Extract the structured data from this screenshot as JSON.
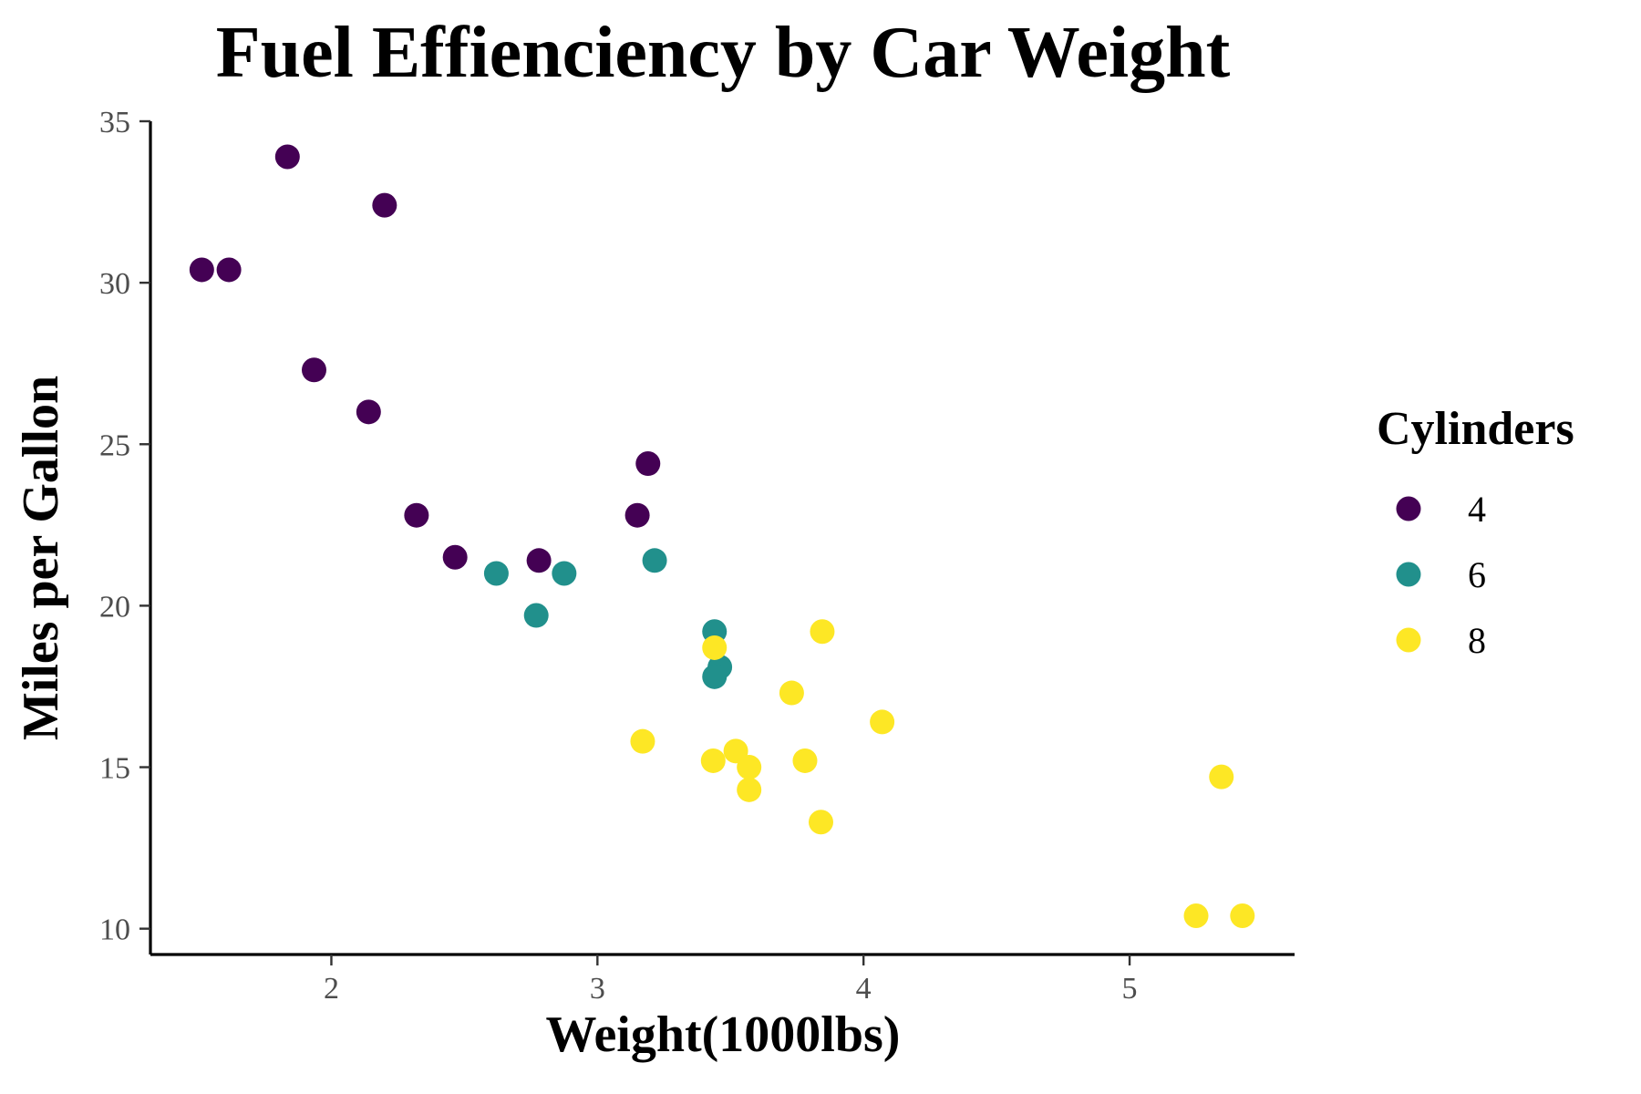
{
  "chart_data": {
    "type": "scatter",
    "title": "Fuel Effienciency by Car Weight",
    "xlabel": "Weight(1000lbs)",
    "ylabel": "Miles per Gallon",
    "xlim": [
      1.32,
      5.62
    ],
    "ylim": [
      9.2,
      35.0
    ],
    "x_ticks": [
      2,
      3,
      4,
      5
    ],
    "y_ticks": [
      10,
      15,
      20,
      25,
      30,
      35
    ],
    "grid": false,
    "legend": {
      "title": "Cylinders",
      "position": "right"
    },
    "series": [
      {
        "name": "4",
        "color": "#440154",
        "points": [
          {
            "x": 2.32,
            "y": 22.8
          },
          {
            "x": 3.19,
            "y": 24.4
          },
          {
            "x": 3.15,
            "y": 22.8
          },
          {
            "x": 2.2,
            "y": 32.4
          },
          {
            "x": 1.615,
            "y": 30.4
          },
          {
            "x": 1.835,
            "y": 33.9
          },
          {
            "x": 2.465,
            "y": 21.5
          },
          {
            "x": 1.935,
            "y": 27.3
          },
          {
            "x": 2.14,
            "y": 26.0
          },
          {
            "x": 1.513,
            "y": 30.4
          },
          {
            "x": 2.78,
            "y": 21.4
          }
        ]
      },
      {
        "name": "6",
        "color": "#21908C",
        "points": [
          {
            "x": 2.62,
            "y": 21.0
          },
          {
            "x": 2.875,
            "y": 21.0
          },
          {
            "x": 3.215,
            "y": 21.4
          },
          {
            "x": 3.46,
            "y": 18.1
          },
          {
            "x": 3.44,
            "y": 19.2
          },
          {
            "x": 3.44,
            "y": 17.8
          },
          {
            "x": 2.77,
            "y": 19.7
          }
        ]
      },
      {
        "name": "8",
        "color": "#FDE725",
        "points": [
          {
            "x": 3.44,
            "y": 18.7
          },
          {
            "x": 3.57,
            "y": 14.3
          },
          {
            "x": 4.07,
            "y": 16.4
          },
          {
            "x": 3.73,
            "y": 17.3
          },
          {
            "x": 3.78,
            "y": 15.2
          },
          {
            "x": 5.25,
            "y": 10.4
          },
          {
            "x": 5.424,
            "y": 10.4
          },
          {
            "x": 5.345,
            "y": 14.7
          },
          {
            "x": 3.52,
            "y": 15.5
          },
          {
            "x": 3.435,
            "y": 15.2
          },
          {
            "x": 3.84,
            "y": 13.3
          },
          {
            "x": 3.845,
            "y": 19.2
          },
          {
            "x": 3.17,
            "y": 15.8
          },
          {
            "x": 3.57,
            "y": 15.0
          }
        ]
      }
    ]
  }
}
